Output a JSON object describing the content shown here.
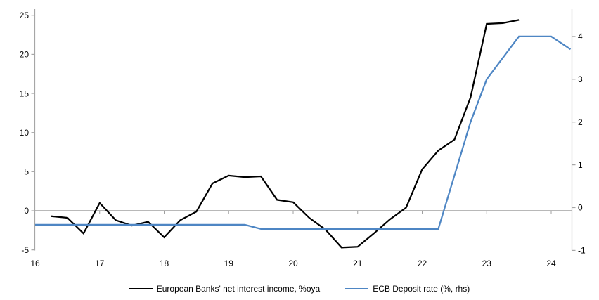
{
  "chart_data": {
    "type": "line",
    "title": "",
    "xlabel": "",
    "ylabel_left": "",
    "ylabel_right": "",
    "grid": "zero-line-only",
    "legend_position": "bottom",
    "x_axis": {
      "ticks": [
        16,
        17,
        18,
        19,
        20,
        21,
        22,
        23,
        24
      ],
      "range": [
        16,
        24.35
      ]
    },
    "y_axis_left": {
      "ticks": [
        -5,
        0,
        5,
        10,
        15,
        20,
        25
      ],
      "range": [
        -5,
        25
      ]
    },
    "y_axis_right": {
      "ticks": [
        -1,
        0,
        1,
        2,
        3,
        4
      ],
      "range": [
        -1,
        4
      ]
    },
    "series": [
      {
        "name": "European Banks' net interest income, %oya",
        "axis": "left",
        "color": "#000000",
        "x": [
          16.25,
          16.5,
          16.75,
          17,
          17.25,
          17.5,
          17.75,
          18,
          18.25,
          18.5,
          18.75,
          19,
          19.25,
          19.5,
          19.75,
          20,
          20.25,
          20.5,
          20.75,
          21,
          21.25,
          21.5,
          21.75,
          22,
          22.25,
          22.5,
          22.75,
          23,
          23.25,
          23.5
        ],
        "values": [
          -0.7,
          -0.9,
          -2.9,
          1.0,
          -1.2,
          -1.9,
          -1.4,
          -3.4,
          -1.2,
          -0.1,
          3.5,
          4.5,
          4.3,
          4.4,
          1.4,
          1.1,
          -0.9,
          -2.4,
          -4.7,
          -4.6,
          -2.9,
          -1.1,
          0.4,
          5.3,
          7.7,
          9.1,
          14.5,
          23.9,
          24.0,
          24.4
        ]
      },
      {
        "name": "ECB Deposit rate (%, rhs)",
        "axis": "right",
        "color": "#4e86c4",
        "x": [
          16,
          16.25,
          16.5,
          16.75,
          17,
          17.25,
          17.5,
          17.75,
          18,
          18.25,
          18.5,
          18.75,
          19,
          19.25,
          19.5,
          19.75,
          20,
          20.25,
          20.5,
          20.75,
          21,
          21.25,
          21.5,
          21.75,
          22,
          22.25,
          22.5,
          22.75,
          23,
          23.25,
          23.5,
          23.75,
          24,
          24.3
        ],
        "values": [
          -0.4,
          -0.4,
          -0.4,
          -0.4,
          -0.4,
          -0.4,
          -0.4,
          -0.4,
          -0.4,
          -0.4,
          -0.4,
          -0.4,
          -0.4,
          -0.4,
          -0.5,
          -0.5,
          -0.5,
          -0.5,
          -0.5,
          -0.5,
          -0.5,
          -0.5,
          -0.5,
          -0.5,
          -0.5,
          -0.5,
          0.75,
          2.0,
          3.0,
          3.5,
          4.0,
          4.0,
          4.0,
          3.7
        ]
      }
    ]
  },
  "legend": {
    "items": [
      {
        "label": "European Banks' net interest income, %oya",
        "color": "#000000"
      },
      {
        "label": "ECB Deposit rate (%, rhs)",
        "color": "#4e86c4"
      }
    ]
  },
  "colors": {
    "background": "#ffffff",
    "axis": "#a6a6a6",
    "zero_line": "#a0a0a0",
    "text": "#000000",
    "nii_line": "#000000",
    "deposit_rate_line": "#4e86c4"
  }
}
